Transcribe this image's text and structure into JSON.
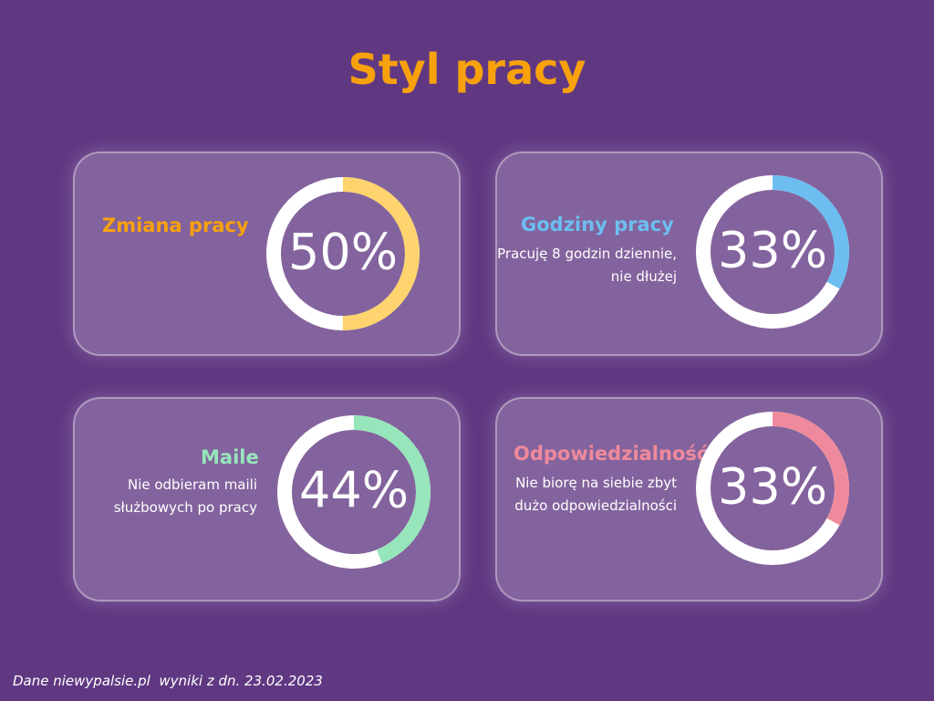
{
  "title": "Styl pracy",
  "footer": "Dane niewypalsie.pl  wyniki z dn. 23.02.2023",
  "chart_data": [
    {
      "type": "pie",
      "title": "Zmiana pracy",
      "description": "",
      "value": 50,
      "label": "50%",
      "color": "#ffd36d"
    },
    {
      "type": "pie",
      "title": "Godziny pracy",
      "description": "Pracuję 8 godzin dziennie, nie dłużej",
      "value": 33,
      "label": "33%",
      "color": "#6cbef0"
    },
    {
      "type": "pie",
      "title": "Maile",
      "description": "Nie odbieram maili służbowych po pracy",
      "value": 44,
      "label": "44%",
      "color": "#97e6bb"
    },
    {
      "type": "pie",
      "title": "Odpowiedzialność",
      "description": "Nie biorę na siebie zbyt dużo odpowiedzialności",
      "value": 33,
      "label": "33%",
      "color": "#ef8a9c"
    }
  ]
}
